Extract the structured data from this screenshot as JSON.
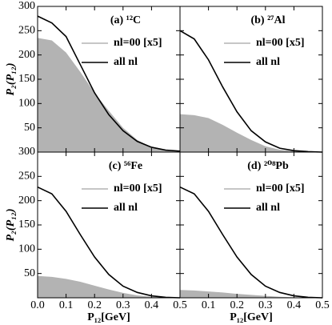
{
  "chart_data": [
    {
      "type": "line",
      "panel_label": "(a) ¹²C",
      "ylabel": "P₂(P₁₂)",
      "x": [
        0,
        0.05,
        0.1,
        0.15,
        0.2,
        0.25,
        0.3,
        0.35,
        0.4,
        0.45,
        0.5
      ],
      "series": [
        {
          "name": "nl=00 [x5]",
          "color": "#b3b3b3",
          "fill": true,
          "values": [
            235,
            230,
            205,
            165,
            122,
            85,
            50,
            25,
            10,
            3,
            0
          ]
        },
        {
          "name": "all nl",
          "color": "#000000",
          "values": [
            280,
            266,
            238,
            180,
            122,
            77,
            44,
            22,
            10,
            4,
            2
          ]
        }
      ],
      "xlim": [
        0,
        0.5
      ],
      "xticks": [
        {
          "value": 0,
          "label": "0.0"
        },
        0.1,
        0.2,
        0.3,
        0.4,
        0.5
      ],
      "ylim": [
        0,
        300
      ],
      "yticks": [
        50,
        100,
        150,
        200,
        250,
        300
      ],
      "show_xtick_labels": false,
      "show_ytick_labels": true
    },
    {
      "type": "line",
      "panel_label": "(b) ²⁷Al",
      "x": [
        0,
        0.05,
        0.1,
        0.15,
        0.2,
        0.25,
        0.3,
        0.35,
        0.4,
        0.45,
        0.5
      ],
      "series": [
        {
          "name": "nl=00 [x5]",
          "color": "#b3b3b3",
          "fill": true,
          "values": [
            78,
            76,
            70,
            56,
            40,
            25,
            12,
            5,
            2,
            0,
            0
          ]
        },
        {
          "name": "all nl",
          "color": "#000000",
          "values": [
            250,
            233,
            190,
            134,
            83,
            44,
            21,
            8,
            3,
            1,
            0
          ]
        }
      ],
      "xlim": [
        0,
        0.5
      ],
      "xticks": [
        0.1,
        0.2,
        0.3,
        0.4,
        0.5
      ],
      "ylim": [
        0,
        300
      ],
      "yticks": [
        50,
        100,
        150,
        200,
        250,
        300
      ],
      "show_xtick_labels": false,
      "show_ytick_labels": false
    },
    {
      "type": "line",
      "panel_label": "(c) ⁵⁶Fe",
      "ylabel": "P₂(P₁₂)",
      "xlabel": "P₁₂[GeV]",
      "x": [
        0,
        0.05,
        0.1,
        0.15,
        0.2,
        0.25,
        0.3,
        0.35,
        0.4,
        0.45,
        0.5
      ],
      "series": [
        {
          "name": "nl=00 [x5]",
          "color": "#b3b3b3",
          "fill": true,
          "values": [
            45,
            43,
            39,
            33,
            25,
            17,
            10,
            5,
            2,
            1,
            0
          ]
        },
        {
          "name": "all nl",
          "color": "#000000",
          "values": [
            228,
            214,
            178,
            130,
            84,
            48,
            24,
            11,
            4,
            1,
            0
          ]
        }
      ],
      "xlim": [
        0,
        0.5
      ],
      "xticks": [
        {
          "value": 0,
          "label": "0.0"
        },
        0.1,
        0.2,
        0.3,
        0.4,
        0.5
      ],
      "ylim": [
        0,
        300
      ],
      "yticks": [
        50,
        100,
        150,
        200,
        250,
        300
      ],
      "show_xtick_labels": true,
      "show_ytick_labels": true
    },
    {
      "type": "line",
      "panel_label": "(d) ²⁰⁸Pb",
      "xlabel": "P₁₂[GeV]",
      "x": [
        0,
        0.05,
        0.1,
        0.15,
        0.2,
        0.25,
        0.3,
        0.35,
        0.4,
        0.45,
        0.5
      ],
      "series": [
        {
          "name": "nl=00 [x5]",
          "color": "#b3b3b3",
          "fill": true,
          "values": [
            16,
            15,
            13,
            11,
            8,
            6,
            4,
            2,
            1,
            0,
            0
          ]
        },
        {
          "name": "all nl",
          "color": "#000000",
          "values": [
            228,
            214,
            178,
            130,
            84,
            48,
            24,
            11,
            4,
            1,
            0
          ]
        }
      ],
      "xlim": [
        0,
        0.5
      ],
      "xticks": [
        0.1,
        0.2,
        0.3,
        0.4,
        0.5
      ],
      "ylim": [
        0,
        300
      ],
      "yticks": [
        50,
        100,
        150,
        200,
        250,
        300
      ],
      "show_xtick_labels": true,
      "show_ytick_labels": false
    }
  ]
}
